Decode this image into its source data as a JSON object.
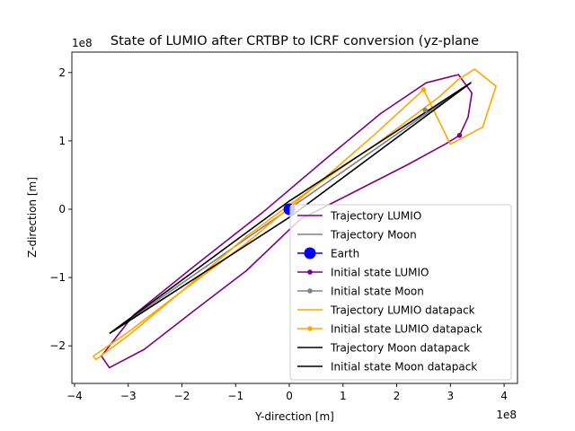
{
  "chart_data": {
    "type": "line",
    "title": "State of LUMIO after CRTBP to ICRF conversion (yz-plane",
    "xlabel": "Y-direction [m]",
    "ylabel": "Z-direction [m]",
    "x_scale_label": "1e8",
    "y_scale_label": "1e8",
    "xlim": [
      -4.05,
      4.25
    ],
    "ylim": [
      -2.55,
      2.3
    ],
    "xticks": [
      -4,
      -3,
      -2,
      -1,
      0,
      1,
      2,
      3,
      4
    ],
    "xtick_labels": [
      "−4",
      "−3",
      "−2",
      "−1",
      "0",
      "1",
      "2",
      "3",
      "4"
    ],
    "yticks": [
      -2,
      -1,
      0,
      1,
      2
    ],
    "ytick_labels": [
      "−2",
      "−1",
      "0",
      "1",
      "2"
    ],
    "grid": false,
    "legend_position": "lower-right",
    "series": [
      {
        "name": "Trajectory LUMIO",
        "kind": "line",
        "color": "#800080",
        "x": [
          3.17,
          3.33,
          3.4,
          3.15,
          2.55,
          1.7,
          0.7,
          -0.5,
          -1.8,
          -2.9,
          -3.5,
          -3.35,
          -2.7,
          -1.8,
          -0.8,
          0.2,
          1.2,
          2.2,
          2.9,
          3.17
        ],
        "y": [
          1.08,
          1.35,
          1.7,
          1.97,
          1.85,
          1.4,
          0.75,
          -0.05,
          -0.85,
          -1.55,
          -2.15,
          -2.32,
          -2.05,
          -1.5,
          -0.9,
          -0.15,
          0.25,
          0.65,
          0.95,
          1.08
        ]
      },
      {
        "name": "Trajectory Moon",
        "kind": "line",
        "color": "#808080",
        "x": [
          -3.35,
          3.38
        ],
        "y": [
          -1.82,
          1.85
        ]
      },
      {
        "name": "Earth",
        "kind": "marker",
        "color": "#0000ff",
        "x": [
          0
        ],
        "y": [
          0
        ]
      },
      {
        "name": "Initial state LUMIO",
        "kind": "marker",
        "color": "#800080",
        "x": [
          3.17
        ],
        "y": [
          1.08
        ]
      },
      {
        "name": "Initial state Moon",
        "kind": "marker",
        "color": "#808080",
        "x": [
          2.53
        ],
        "y": [
          1.45
        ]
      },
      {
        "name": "Trajectory LUMIO datapack",
        "kind": "line",
        "color": "#ffa500",
        "x": [
          2.5,
          1.6,
          0.5,
          -0.8,
          -2.0,
          -3.0,
          -3.65,
          -3.6,
          -3.0,
          -2.0,
          -0.8,
          0.5,
          1.7,
          2.8,
          3.15,
          3.45,
          3.85,
          3.6,
          3.0,
          2.5
        ],
        "y": [
          1.75,
          1.1,
          0.35,
          -0.5,
          -1.2,
          -1.8,
          -2.15,
          -2.2,
          -1.85,
          -1.2,
          -0.4,
          0.35,
          1.0,
          1.65,
          1.9,
          2.05,
          1.8,
          1.2,
          0.95,
          1.75
        ]
      },
      {
        "name": "Initial state LUMIO datapack",
        "kind": "marker",
        "color": "#ffa500",
        "x": [
          2.5
        ],
        "y": [
          1.75
        ]
      },
      {
        "name": "Trajectory Moon datapack",
        "kind": "line",
        "color": "#000000",
        "x": [
          -3.35,
          0.0,
          3.38,
          0.0,
          -3.35
        ],
        "y": [
          -1.82,
          0.12,
          1.85,
          -0.12,
          -1.82
        ]
      },
      {
        "name": "Initial state Moon datapack",
        "kind": "line",
        "color": "#000000",
        "x": [],
        "y": []
      }
    ]
  }
}
